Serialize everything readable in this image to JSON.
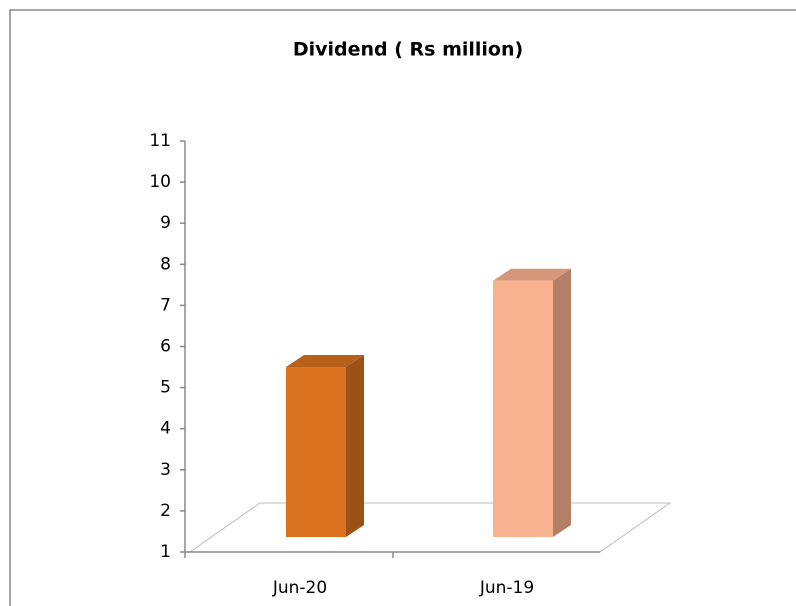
{
  "chart_data": {
    "type": "bar3d",
    "title": "Dividend ( Rs million)",
    "categories": [
      "Jun-20",
      "Jun-19"
    ],
    "values": [
      5.5,
      7.6
    ],
    "colors": [
      "#d9711f",
      "#f9b28f"
    ],
    "ylim": [
      1,
      11
    ],
    "yticks": [
      1,
      2,
      3,
      4,
      5,
      6,
      7,
      8,
      9,
      10,
      11
    ]
  }
}
